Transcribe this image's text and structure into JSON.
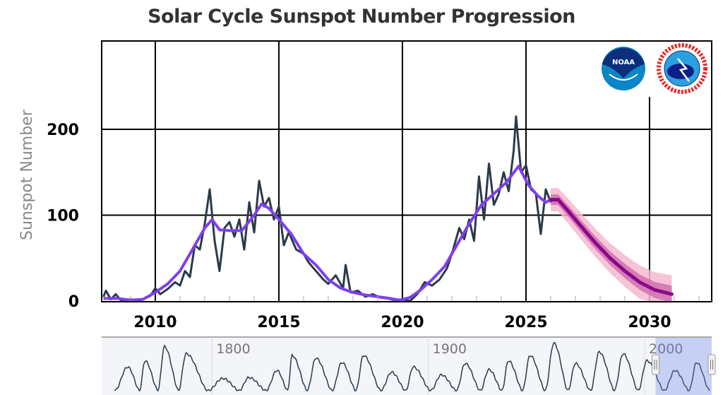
{
  "chart_data": {
    "type": "line",
    "title": "Solar Cycle Sunspot Number Progression",
    "ylabel": "Sunspot Number",
    "xlabel": "",
    "xlim": [
      2007.83,
      2032.5
    ],
    "ylim": [
      0,
      300
    ],
    "x_ticks": [
      2010,
      2015,
      2020,
      2025,
      2030
    ],
    "y_ticks": [
      0,
      100,
      200
    ],
    "grid": true,
    "colors": {
      "observed": "#2b3a4a",
      "smoothed": "#7f3ff0",
      "predicted": "#8a0a8a",
      "band_inner": "#d070b0",
      "band_outer": "#f4b8d0"
    },
    "series": [
      {
        "key": "observed",
        "points": [
          [
            2007.9,
            5
          ],
          [
            2008.0,
            12
          ],
          [
            2008.2,
            2
          ],
          [
            2008.4,
            8
          ],
          [
            2008.6,
            1
          ],
          [
            2009.0,
            2
          ],
          [
            2009.4,
            1
          ],
          [
            2009.8,
            6
          ],
          [
            2010.0,
            15
          ],
          [
            2010.2,
            8
          ],
          [
            2010.5,
            14
          ],
          [
            2010.8,
            22
          ],
          [
            2011.0,
            18
          ],
          [
            2011.2,
            35
          ],
          [
            2011.4,
            28
          ],
          [
            2011.6,
            65
          ],
          [
            2011.8,
            60
          ],
          [
            2012.0,
            90
          ],
          [
            2012.2,
            130
          ],
          [
            2012.4,
            70
          ],
          [
            2012.6,
            35
          ],
          [
            2012.8,
            85
          ],
          [
            2013.0,
            92
          ],
          [
            2013.2,
            75
          ],
          [
            2013.4,
            95
          ],
          [
            2013.6,
            60
          ],
          [
            2013.8,
            115
          ],
          [
            2014.0,
            80
          ],
          [
            2014.2,
            140
          ],
          [
            2014.4,
            110
          ],
          [
            2014.6,
            120
          ],
          [
            2014.8,
            95
          ],
          [
            2015.0,
            110
          ],
          [
            2015.2,
            65
          ],
          [
            2015.4,
            80
          ],
          [
            2015.7,
            60
          ],
          [
            2016.0,
            55
          ],
          [
            2016.2,
            45
          ],
          [
            2016.5,
            35
          ],
          [
            2016.8,
            25
          ],
          [
            2017.0,
            20
          ],
          [
            2017.3,
            30
          ],
          [
            2017.6,
            15
          ],
          [
            2017.7,
            42
          ],
          [
            2017.9,
            10
          ],
          [
            2018.2,
            12
          ],
          [
            2018.5,
            5
          ],
          [
            2018.8,
            8
          ],
          [
            2019.1,
            4
          ],
          [
            2019.4,
            3
          ],
          [
            2019.7,
            1
          ],
          [
            2020.0,
            2
          ],
          [
            2020.3,
            0
          ],
          [
            2020.6,
            8
          ],
          [
            2020.9,
            22
          ],
          [
            2021.2,
            18
          ],
          [
            2021.5,
            25
          ],
          [
            2021.8,
            38
          ],
          [
            2022.0,
            55
          ],
          [
            2022.3,
            85
          ],
          [
            2022.5,
            72
          ],
          [
            2022.7,
            95
          ],
          [
            2022.9,
            70
          ],
          [
            2023.1,
            145
          ],
          [
            2023.3,
            95
          ],
          [
            2023.5,
            160
          ],
          [
            2023.7,
            112
          ],
          [
            2023.9,
            125
          ],
          [
            2024.1,
            150
          ],
          [
            2024.3,
            128
          ],
          [
            2024.5,
            175
          ],
          [
            2024.6,
            215
          ],
          [
            2024.8,
            150
          ],
          [
            2025.0,
            158
          ],
          [
            2025.2,
            130
          ],
          [
            2025.4,
            125
          ],
          [
            2025.6,
            78
          ],
          [
            2025.8,
            130
          ],
          [
            2026.0,
            115
          ]
        ]
      },
      {
        "key": "smoothed",
        "points": [
          [
            2007.9,
            3
          ],
          [
            2008.5,
            3
          ],
          [
            2009.0,
            1
          ],
          [
            2009.5,
            2
          ],
          [
            2010.0,
            10
          ],
          [
            2010.5,
            20
          ],
          [
            2011.0,
            35
          ],
          [
            2011.5,
            60
          ],
          [
            2012.0,
            85
          ],
          [
            2012.3,
            95
          ],
          [
            2012.6,
            83
          ],
          [
            2013.0,
            82
          ],
          [
            2013.5,
            82
          ],
          [
            2014.0,
            100
          ],
          [
            2014.3,
            113
          ],
          [
            2014.6,
            108
          ],
          [
            2015.0,
            95
          ],
          [
            2015.5,
            78
          ],
          [
            2016.0,
            55
          ],
          [
            2016.5,
            42
          ],
          [
            2017.0,
            25
          ],
          [
            2017.5,
            15
          ],
          [
            2018.0,
            10
          ],
          [
            2018.5,
            7
          ],
          [
            2019.0,
            5
          ],
          [
            2019.5,
            3
          ],
          [
            2019.9,
            1
          ],
          [
            2020.3,
            4
          ],
          [
            2020.7,
            12
          ],
          [
            2021.2,
            25
          ],
          [
            2021.7,
            40
          ],
          [
            2022.2,
            65
          ],
          [
            2022.7,
            90
          ],
          [
            2023.2,
            112
          ],
          [
            2023.7,
            125
          ],
          [
            2024.2,
            138
          ],
          [
            2024.7,
            157
          ],
          [
            2025.1,
            135
          ],
          [
            2025.5,
            122
          ],
          [
            2025.8,
            115
          ],
          [
            2026.0,
            118
          ]
        ]
      },
      {
        "key": "predicted",
        "points": [
          [
            2026.0,
            118
          ],
          [
            2026.3,
            118
          ],
          [
            2026.7,
            105
          ],
          [
            2027.2,
            88
          ],
          [
            2027.8,
            68
          ],
          [
            2028.4,
            50
          ],
          [
            2029.0,
            35
          ],
          [
            2029.6,
            22
          ],
          [
            2030.2,
            13
          ],
          [
            2030.9,
            8
          ]
        ],
        "inner_band": 10,
        "outer_band": 22
      }
    ],
    "navigator": {
      "xlim": [
        1749,
        2031
      ],
      "labels": [
        "1800",
        "1900",
        "2000"
      ],
      "label_years": [
        1800,
        1900,
        2000
      ],
      "selected_range": [
        2008,
        2031
      ],
      "cycle_peaks": [
        [
          1761,
          135
        ],
        [
          1769,
          170
        ],
        [
          1778,
          250
        ],
        [
          1788,
          210
        ],
        [
          1805,
          70
        ],
        [
          1817,
          75
        ],
        [
          1830,
          115
        ],
        [
          1837,
          200
        ],
        [
          1848,
          185
        ],
        [
          1860,
          160
        ],
        [
          1870,
          200
        ],
        [
          1883,
          105
        ],
        [
          1893,
          135
        ],
        [
          1906,
          90
        ],
        [
          1917,
          155
        ],
        [
          1928,
          120
        ],
        [
          1937,
          170
        ],
        [
          1947,
          200
        ],
        [
          1958,
          270
        ],
        [
          1968,
          155
        ],
        [
          1979,
          220
        ],
        [
          1990,
          210
        ],
        [
          2001,
          170
        ],
        [
          2014,
          115
        ],
        [
          2024,
          160
        ]
      ]
    }
  }
}
